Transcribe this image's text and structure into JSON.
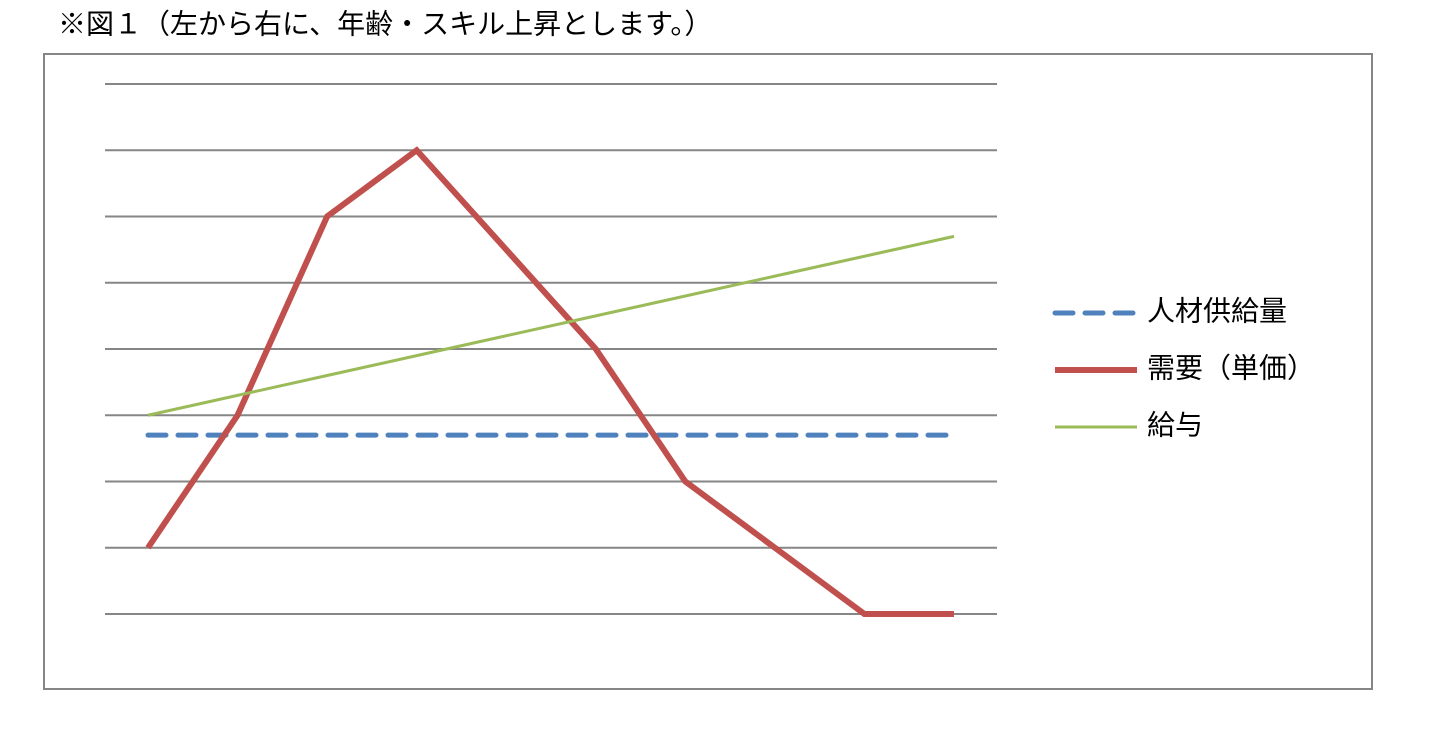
{
  "chart_data": {
    "type": "line",
    "title": "※図１（左から右に、年齢・スキル上昇とします。）",
    "categories": [
      null,
      null,
      null,
      null,
      null,
      null,
      null,
      null,
      null,
      null
    ],
    "series": [
      {
        "name": "人材供給量",
        "color": "#4f81bd",
        "line_style": "dashed",
        "values": [
          2.7,
          2.7,
          2.7,
          2.7,
          2.7,
          2.7,
          2.7,
          2.7,
          2.7,
          2.7
        ]
      },
      {
        "name": "需要（単価）",
        "color": "#c0504d",
        "line_style": "solid",
        "values": [
          1,
          3,
          6,
          7,
          5.5,
          4,
          2,
          1,
          0,
          0
        ]
      },
      {
        "name": "給与",
        "color": "#9bbb59",
        "line_style": "double",
        "values": [
          3,
          3.3,
          3.6,
          3.9,
          4.2,
          4.5,
          4.8,
          5.1,
          5.4,
          5.7
        ]
      }
    ],
    "ylim": [
      0,
      8
    ],
    "yticks": [
      0,
      1,
      2,
      3,
      4,
      5,
      6,
      7,
      8
    ],
    "grid": true,
    "tick_labels": false,
    "legend": "right"
  }
}
